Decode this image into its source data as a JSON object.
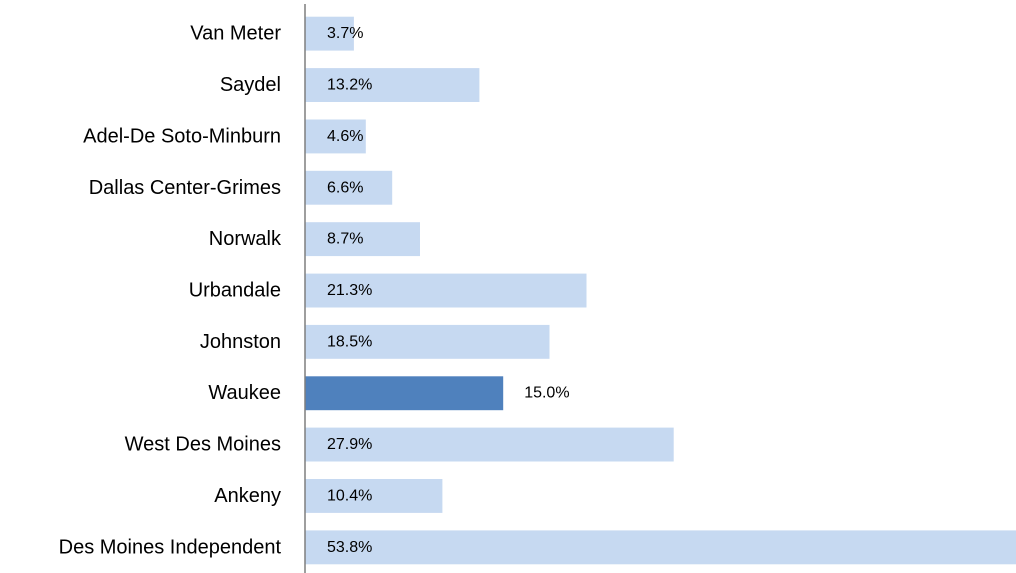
{
  "chart_data": {
    "type": "bar",
    "orientation": "horizontal",
    "categories": [
      "Van Meter",
      "Saydel",
      "Adel-De Soto-Minburn",
      "Dallas Center-Grimes",
      "Norwalk",
      "Urbandale",
      "Johnston",
      "Waukee",
      "West Des Moines",
      "Ankeny",
      "Des Moines Independent"
    ],
    "values": [
      3.7,
      13.2,
      4.6,
      6.6,
      8.7,
      21.3,
      18.5,
      15.0,
      27.9,
      10.4,
      53.8
    ],
    "value_labels": [
      "3.7%",
      "13.2%",
      "4.6%",
      "6.6%",
      "8.7%",
      "21.3%",
      "18.5%",
      "15.0%",
      "27.9%",
      "10.4%",
      "53.8%"
    ],
    "highlight": "Waukee",
    "colors": {
      "bar": "#c6d9f1",
      "highlight": "#4f81bd",
      "axis": "#7f7f7f"
    },
    "xlim": [
      0,
      53.8
    ],
    "grid": false,
    "legend": "none"
  }
}
